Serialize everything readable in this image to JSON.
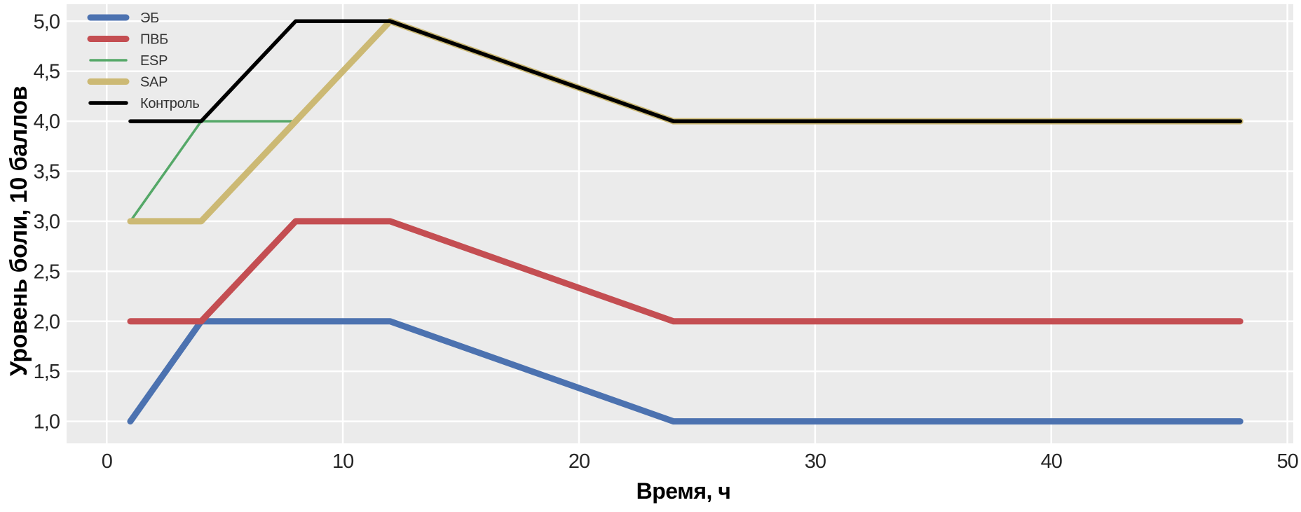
{
  "chart_data": {
    "type": "line",
    "title": "",
    "xlabel": "Время, ч",
    "ylabel": "Уровень боли, 10 баллов",
    "x_unit_hours": true,
    "xlim": [
      -1.7,
      50.25
    ],
    "ylim": [
      0.78,
      5.17
    ],
    "grid": true,
    "legend_position": "upper-left",
    "plot_background": "#ebebeb",
    "grid_color": "#ffffff",
    "tick_color": "#262626",
    "xticks": {
      "values": [
        0,
        10,
        20,
        30,
        40,
        50
      ],
      "labels": [
        "0",
        "10",
        "20",
        "30",
        "40",
        "50"
      ]
    },
    "yticks": {
      "values": [
        1.0,
        1.5,
        2.0,
        2.5,
        3.0,
        3.5,
        4.0,
        4.5,
        5.0
      ],
      "labels": [
        "1,0",
        "1,5",
        "2,0",
        "2,5",
        "3,0",
        "3,5",
        "4,0",
        "4,5",
        "5,0"
      ]
    },
    "series": [
      {
        "name": "ЭБ",
        "color": "#4c72b0",
        "width": 9,
        "x": [
          1,
          4,
          8,
          12,
          24,
          48
        ],
        "y": [
          1,
          2,
          2,
          2,
          1,
          1
        ]
      },
      {
        "name": "ПВБ",
        "color": "#c44e52",
        "width": 9,
        "x": [
          1,
          4,
          8,
          12,
          24,
          48
        ],
        "y": [
          2,
          2,
          3,
          3,
          2,
          2
        ]
      },
      {
        "name": "ESP",
        "color": "#55a868",
        "width": 3.5,
        "x": [
          1,
          4,
          8
        ],
        "y": [
          3,
          4,
          4
        ]
      },
      {
        "name": "SAP",
        "color": "#ccb974",
        "width": 9,
        "x": [
          1,
          4,
          8,
          12,
          24,
          48
        ],
        "y": [
          3,
          3,
          4,
          5,
          4,
          4
        ]
      },
      {
        "name": "Контроль",
        "color": "#000000",
        "width": 5.5,
        "x": [
          1,
          4,
          8,
          12,
          24,
          48
        ],
        "y": [
          4,
          4,
          5,
          5,
          4,
          4
        ]
      }
    ]
  }
}
